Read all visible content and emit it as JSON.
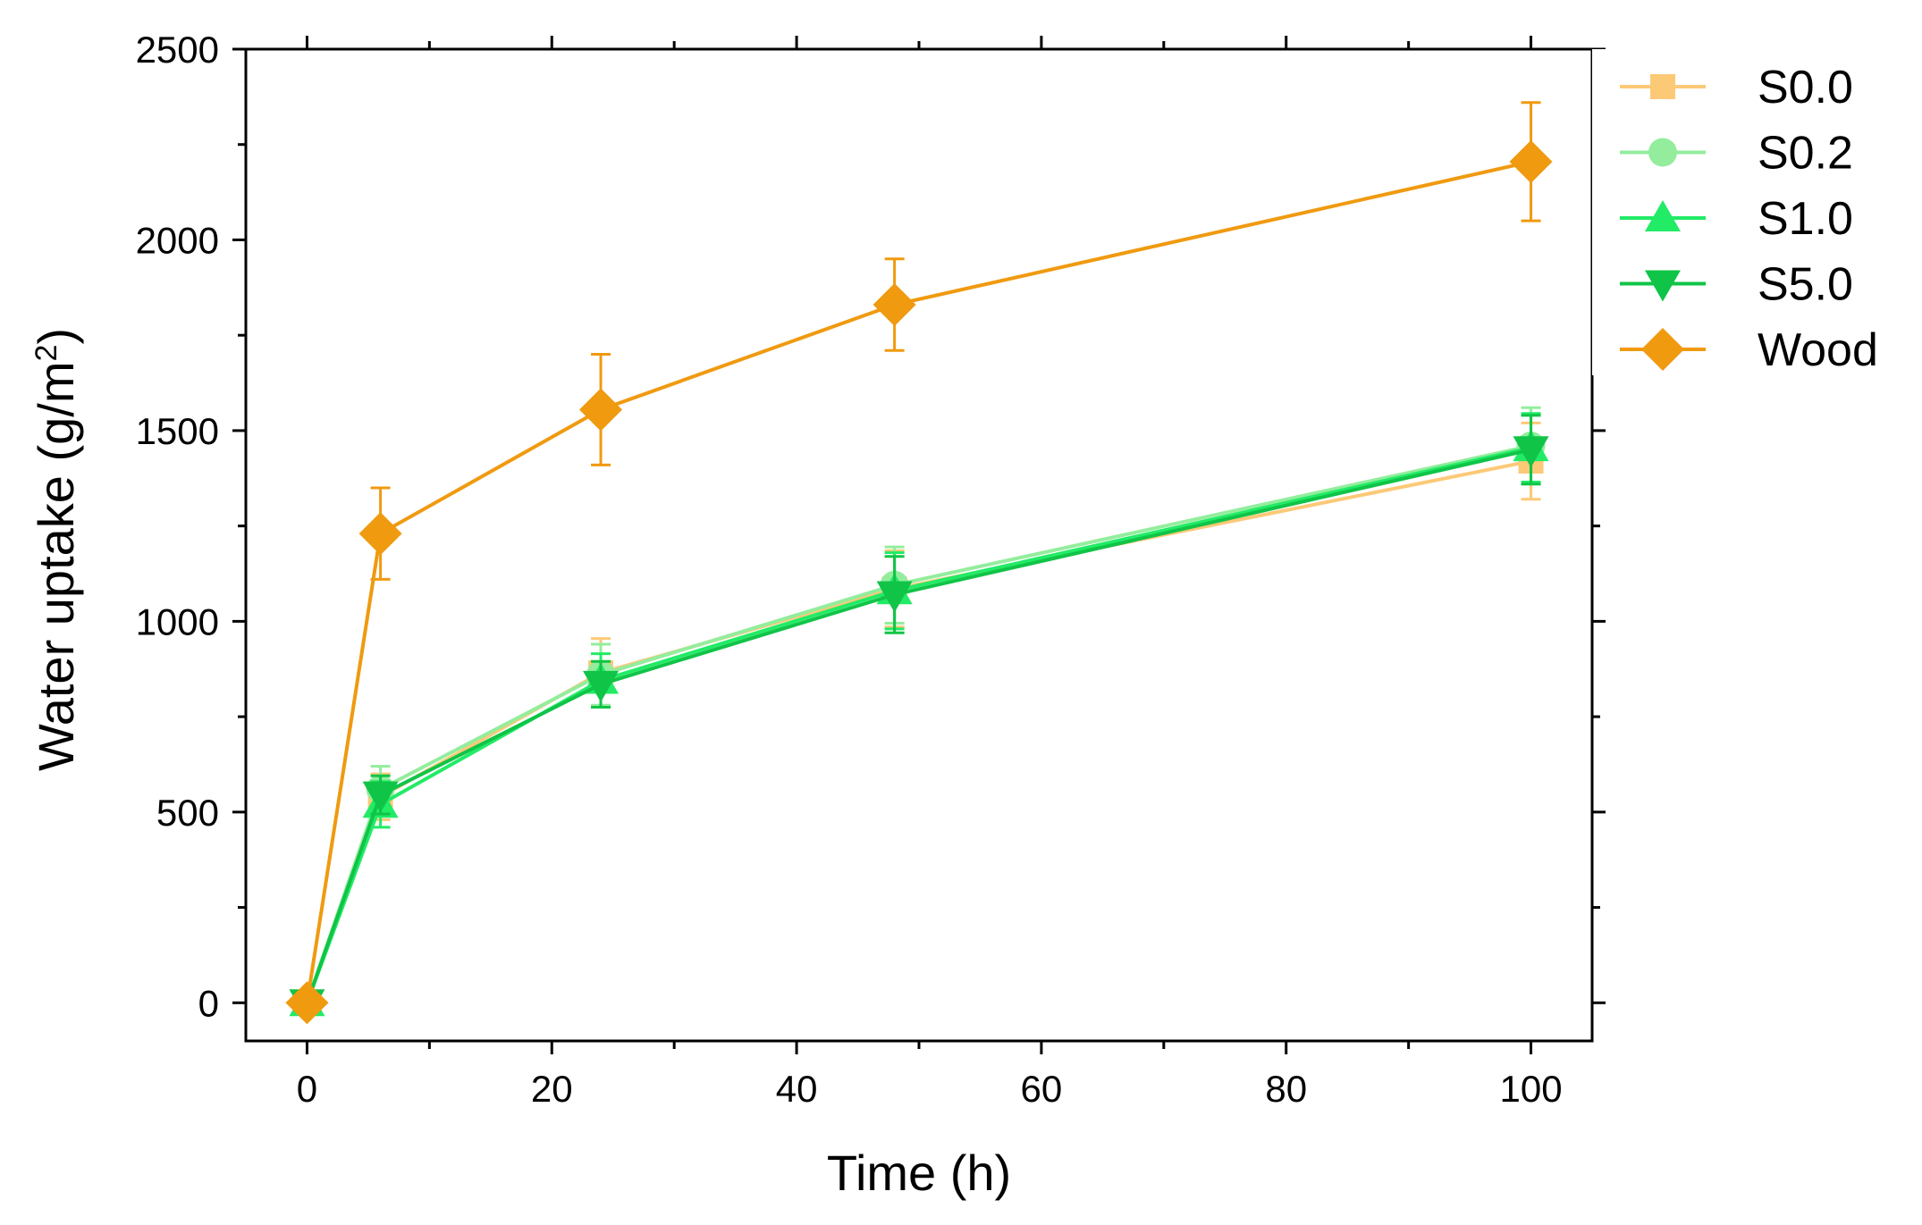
{
  "chart_data": {
    "type": "line",
    "title": "",
    "xlabel": "Time (h)",
    "ylabel_main": "Water uptake (g/m",
    "ylabel_sup": "2",
    "ylabel_close": ")",
    "xlim": [
      -5,
      105
    ],
    "ylim": [
      -100,
      2500
    ],
    "xticks": [
      0,
      20,
      40,
      60,
      80,
      100
    ],
    "xtick_labels": [
      "0",
      "20",
      "40",
      "60",
      "80",
      "100"
    ],
    "yticks": [
      0,
      500,
      1000,
      1500,
      2000,
      2500
    ],
    "ytick_labels": [
      "0",
      "500",
      "1000",
      "1500",
      "2000",
      "2500"
    ],
    "x": [
      0,
      6,
      24,
      48,
      100
    ],
    "series": [
      {
        "name": "S0.0",
        "marker": "square",
        "color": "#FCC977",
        "values": [
          0,
          540,
          865,
          1085,
          1420
        ],
        "errors": [
          15,
          60,
          90,
          100,
          100
        ]
      },
      {
        "name": "S0.2",
        "marker": "circle",
        "color": "#93ED9D",
        "values": [
          0,
          560,
          860,
          1095,
          1460
        ],
        "errors": [
          15,
          60,
          80,
          100,
          100
        ]
      },
      {
        "name": "S1.0",
        "marker": "triangle-up",
        "color": "#22EB66",
        "values": [
          0,
          520,
          845,
          1080,
          1455
        ],
        "errors": [
          15,
          60,
          70,
          100,
          90
        ]
      },
      {
        "name": "S5.0",
        "marker": "triangle-down",
        "color": "#10C447",
        "values": [
          0,
          545,
          835,
          1070,
          1450
        ],
        "errors": [
          15,
          50,
          60,
          100,
          90
        ]
      },
      {
        "name": "Wood",
        "marker": "diamond",
        "color": "#F09A10",
        "values": [
          0,
          1230,
          1555,
          1830,
          2205
        ],
        "errors": [
          20,
          120,
          145,
          120,
          155
        ]
      }
    ],
    "legend_position": "outside-top-right",
    "grid": false
  }
}
